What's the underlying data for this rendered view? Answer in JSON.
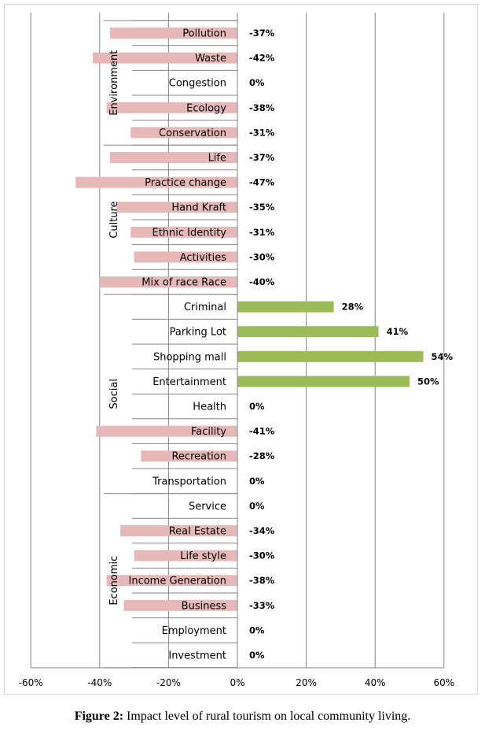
{
  "chart_data": {
    "type": "bar",
    "orientation": "horizontal",
    "categories": [
      "Pollution",
      "Waste",
      "Congestion",
      "Ecology",
      "Conservation",
      "Life",
      "Practice change",
      "Hand Kraft",
      "Ethnic Identity",
      "Activities",
      "Mix of race Race",
      "Criminal",
      "Parking Lot",
      "Shopping mall",
      "Entertainment",
      "Health",
      "Facility",
      "Recreation",
      "Transportation",
      "Service",
      "Real Estate",
      "Life style",
      "Income Generation",
      "Business",
      "Employment",
      "Investment"
    ],
    "values": [
      -37,
      -42,
      0,
      -38,
      -31,
      -37,
      -47,
      -35,
      -31,
      -30,
      -40,
      28,
      41,
      54,
      50,
      0,
      -41,
      -28,
      0,
      0,
      -34,
      -30,
      -38,
      -33,
      0,
      0
    ],
    "value_labels": [
      "-37%",
      "-42%",
      "0%",
      "-38%",
      "-31%",
      "-37%",
      "-47%",
      "-35%",
      "-31%",
      "-30%",
      "-40%",
      "28%",
      "41%",
      "54%",
      "50%",
      "0%",
      "-41%",
      "-28%",
      "0%",
      "0%",
      "-34%",
      "-30%",
      "-38%",
      "-33%",
      "0%",
      "0%"
    ],
    "groups": [
      {
        "name": "Environment",
        "start": 0,
        "end": 4
      },
      {
        "name": "Culture",
        "start": 5,
        "end": 10
      },
      {
        "name": "Social",
        "start": 11,
        "end": 18
      },
      {
        "name": "Economic",
        "start": 19,
        "end": 25
      }
    ],
    "xlim": [
      -60,
      60
    ],
    "xticks": [
      -60,
      -40,
      -20,
      0,
      20,
      40,
      60
    ],
    "xtick_labels": [
      "-60%",
      "-40%",
      "-20%",
      "0%",
      "20%",
      "40%",
      "60%"
    ],
    "grid": true,
    "colors": {
      "negative": "#e6b9b8",
      "positive": "#9bbb59",
      "grid": "#868686"
    }
  },
  "caption": {
    "prefix": "Figure 2:",
    "text": " Impact level of rural tourism on local community living."
  }
}
